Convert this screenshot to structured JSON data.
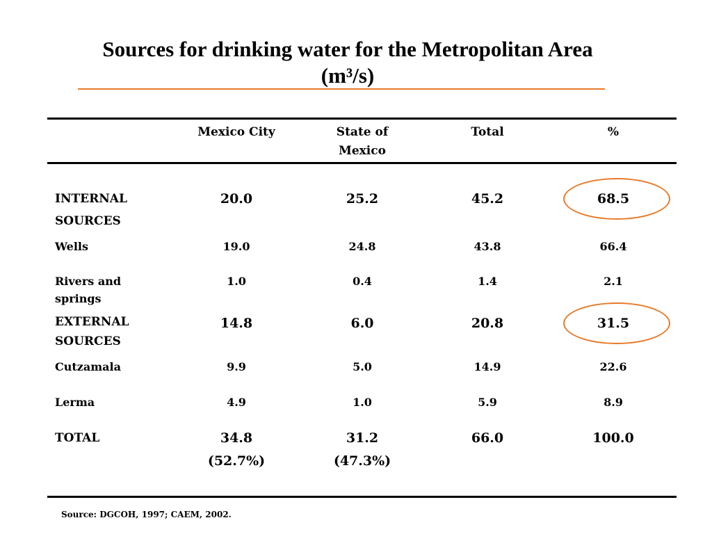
{
  "title_line1": "Sources for drinking water for the Metropolitan Area",
  "title_line2": "(m³/s)",
  "colors": {
    "accent": "#e87a2a",
    "rules": "#000000"
  },
  "columns": [
    "Mexico City",
    "State of Mexico",
    "Total",
    "%"
  ],
  "rows": [
    {
      "label": "INTERNAL SOURCES",
      "mexico_city": "20.0",
      "state_of_mexico": "25.2",
      "total": "45.2",
      "percent": "68.5"
    },
    {
      "label": "Wells",
      "mexico_city": "19.0",
      "state_of_mexico": "24.8",
      "total": "43.8",
      "percent": "66.4"
    },
    {
      "label": "Rivers and springs",
      "mexico_city": "1.0",
      "state_of_mexico": "0.4",
      "total": "1.4",
      "percent": "2.1"
    },
    {
      "label": "EXTERNAL SOURCES",
      "mexico_city": "14.8",
      "state_of_mexico": "6.0",
      "total": "20.8",
      "percent": "31.5"
    },
    {
      "label": "Cutzamala",
      "mexico_city": "9.9",
      "state_of_mexico": "5.0",
      "total": "14.9",
      "percent": "22.6"
    },
    {
      "label": "Lerma",
      "mexico_city": "4.9",
      "state_of_mexico": "1.0",
      "total": "5.9",
      "percent": "8.9"
    },
    {
      "label": "TOTAL",
      "mexico_city": "34.8",
      "state_of_mexico": "31.2",
      "total": "66.0",
      "percent": "100.0"
    }
  ],
  "total_shares": {
    "mexico_city": "(52.7%)",
    "state_of_mexico": "(47.3%)"
  },
  "source": "Source: DGCOH, 1997; CAEM, 2002."
}
